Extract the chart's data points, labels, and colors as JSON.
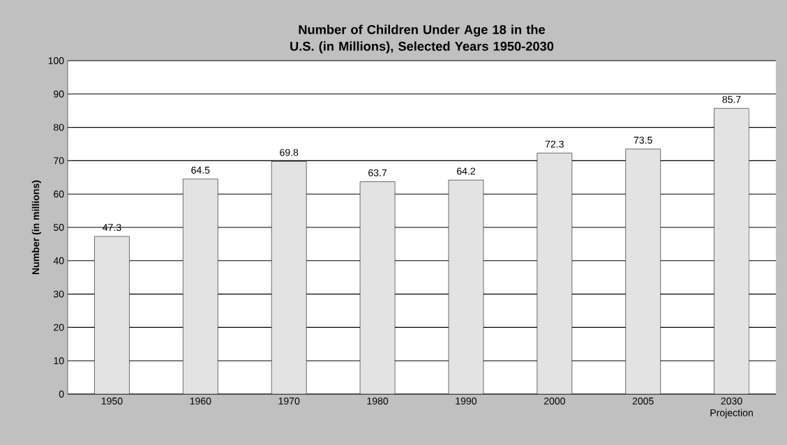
{
  "chart_data": {
    "type": "bar",
    "title": "Number of Children Under Age 18 in the U.S. (in Millions), Selected Years 1950-2030",
    "ylabel": "Number (in millions)",
    "categories": [
      "1950",
      "1960",
      "1970",
      "1980",
      "1990",
      "2000",
      "2005",
      "2030 Projection"
    ],
    "values": [
      47.3,
      64.5,
      69.8,
      63.7,
      64.2,
      72.3,
      73.5,
      85.7
    ],
    "color": "#e3e3e3",
    "ylim": [
      0,
      100
    ],
    "yticks": [
      0,
      10,
      20,
      30,
      40,
      50,
      60,
      70,
      80,
      90,
      100
    ],
    "grid": "y",
    "data_labels": true
  }
}
